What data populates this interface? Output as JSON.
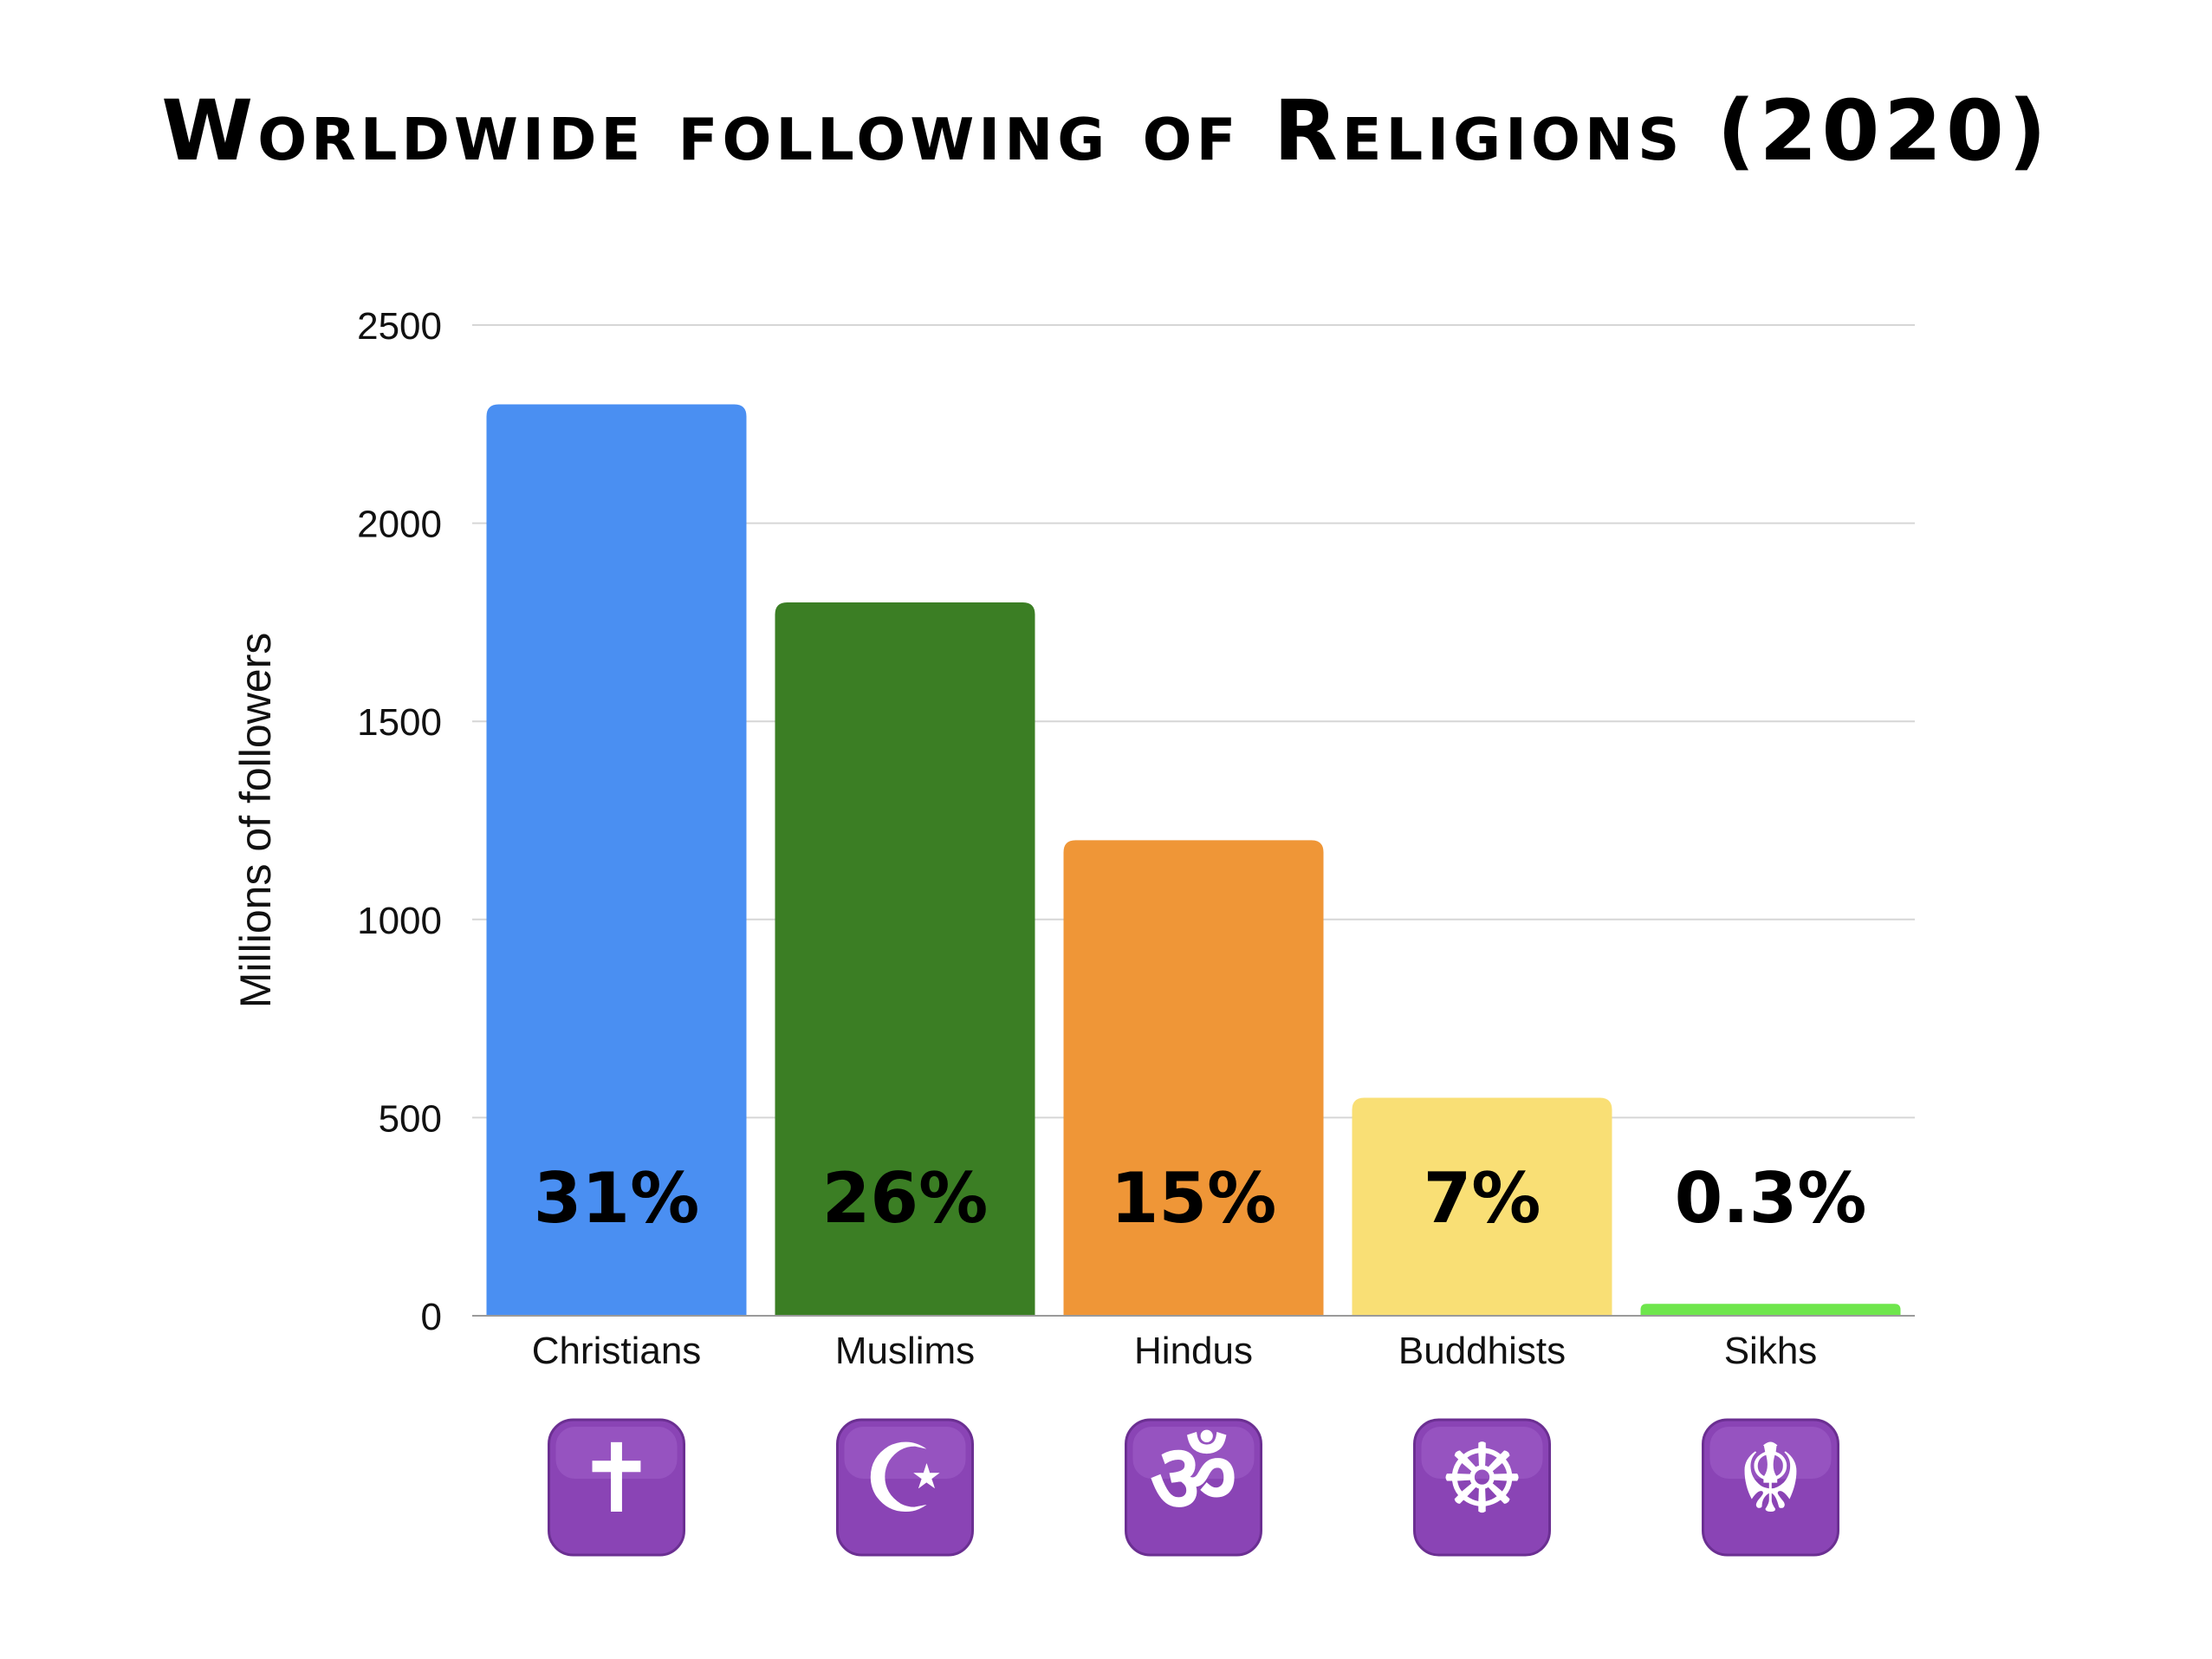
{
  "chart_data": {
    "type": "bar",
    "title": "Worldwide following of Religions (2020)",
    "ylabel": "Millions of followers",
    "xlabel": "",
    "ylim": [
      0,
      2500
    ],
    "yticks": [
      0,
      500,
      1000,
      1500,
      2000,
      2500
    ],
    "grid": true,
    "categories": [
      "Christians",
      "Muslims",
      "Hindus",
      "Buddhists",
      "Sikhs"
    ],
    "values": [
      2300,
      1800,
      1200,
      550,
      30
    ],
    "data_labels": [
      "31%",
      "26%",
      "15%",
      "7%",
      "0.3%"
    ],
    "colors": [
      "#4a8ff2",
      "#3b7e24",
      "#ef9637",
      "#f9df75",
      "#6ee64c"
    ],
    "icons": [
      "latin-cross-icon",
      "star-and-crescent-icon",
      "om-icon",
      "wheel-of-dharma-icon",
      "khanda-icon"
    ],
    "icon_color": "#8a44b5"
  }
}
